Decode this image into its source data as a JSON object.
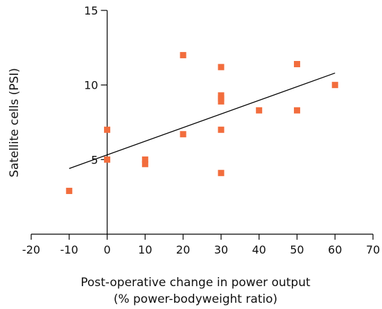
{
  "chart_data": {
    "type": "scatter",
    "title": "",
    "xlabel": "Post-operative change in power output",
    "xlabel_line2": "(% power-bodyweight ratio)",
    "ylabel": "Satellite cells (PSI)",
    "xlim": [
      -20,
      70
    ],
    "ylim": [
      0,
      15
    ],
    "xticks": [
      -20,
      -10,
      0,
      10,
      20,
      30,
      40,
      50,
      60,
      70
    ],
    "xtick_labels": [
      "-20",
      "-10",
      "0",
      "10",
      "20",
      "30",
      "40",
      "50",
      "60",
      "70"
    ],
    "yticks": [
      5,
      10,
      15
    ],
    "ytick_labels": [
      "5",
      "10",
      "15"
    ],
    "grid": false,
    "legend": "none",
    "colors": {
      "points": "#f26d3d",
      "trendline": "#000000",
      "axes": "#000000"
    },
    "series": [
      {
        "points": [
          {
            "x": -10,
            "y": 2.9
          },
          {
            "x": 0,
            "y": 7.0
          },
          {
            "x": 0,
            "y": 5.0
          },
          {
            "x": 10,
            "y": 5.0
          },
          {
            "x": 10,
            "y": 4.7
          },
          {
            "x": 20,
            "y": 12.0
          },
          {
            "x": 20,
            "y": 6.7
          },
          {
            "x": 30,
            "y": 11.2
          },
          {
            "x": 30,
            "y": 9.3
          },
          {
            "x": 30,
            "y": 9.1
          },
          {
            "x": 30,
            "y": 8.9
          },
          {
            "x": 30,
            "y": 7.0
          },
          {
            "x": 30,
            "y": 4.1
          },
          {
            "x": 40,
            "y": 8.3
          },
          {
            "x": 50,
            "y": 11.4
          },
          {
            "x": 50,
            "y": 8.3
          },
          {
            "x": 60,
            "y": 10.0
          }
        ]
      }
    ],
    "trendline": {
      "x1": -10,
      "y1": 4.4,
      "x2": 60,
      "y2": 10.8
    }
  }
}
